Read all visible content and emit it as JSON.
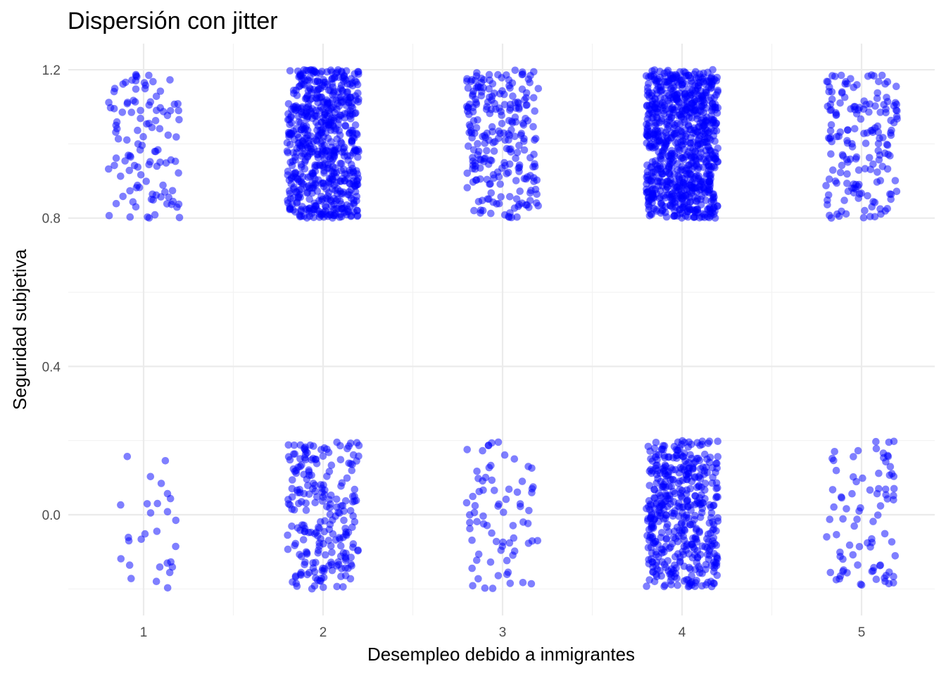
{
  "chart_data": {
    "type": "scatter",
    "title": "Dispersión con jitter",
    "xlabel": "Desempleo debido a inmigrantes",
    "ylabel": "Seguridad subjetiva",
    "x_ticks": [
      "1",
      "2",
      "3",
      "4",
      "5"
    ],
    "y_ticks": [
      "0.0",
      "0.4",
      "0.8",
      "1.2"
    ],
    "xlim": [
      0.62,
      5.41
    ],
    "ylim": [
      -0.26,
      1.26
    ],
    "grid": true,
    "legend": "none",
    "point_color": "#0000ff",
    "point_opacity": 0.5,
    "jitter": {
      "width": 0.2,
      "height": 0.2
    },
    "groups": [
      {
        "x": 1,
        "y": 1,
        "count": 110
      },
      {
        "x": 1,
        "y": 0,
        "count": 28
      },
      {
        "x": 2,
        "y": 1,
        "count": 640
      },
      {
        "x": 2,
        "y": 0,
        "count": 230
      },
      {
        "x": 3,
        "y": 1,
        "count": 240
      },
      {
        "x": 3,
        "y": 0,
        "count": 75
      },
      {
        "x": 4,
        "y": 1,
        "count": 820
      },
      {
        "x": 4,
        "y": 0,
        "count": 460
      },
      {
        "x": 5,
        "y": 1,
        "count": 170
      },
      {
        "x": 5,
        "y": 0,
        "count": 85
      }
    ]
  }
}
